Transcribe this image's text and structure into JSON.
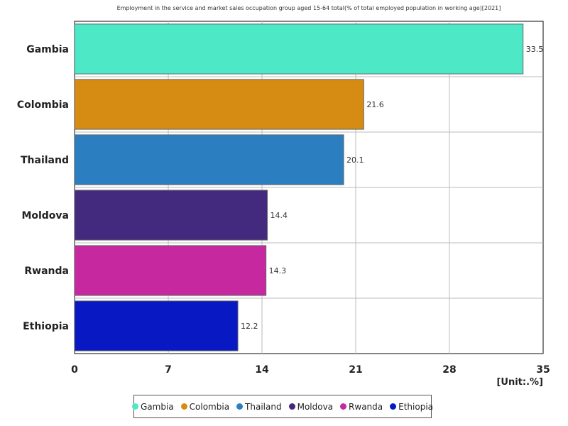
{
  "chart_data": {
    "type": "bar",
    "orientation": "horizontal",
    "title": "Employment in the service and market sales occupation group aged 15-64 total(% of total employed population in working age)[2021]",
    "categories": [
      "Gambia",
      "Colombia",
      "Thailand",
      "Moldova",
      "Rwanda",
      "Ethiopia"
    ],
    "values": [
      33.5,
      21.6,
      20.1,
      14.4,
      14.3,
      12.2
    ],
    "colors": [
      "#4de8c6",
      "#d68b13",
      "#2b7fc1",
      "#432a7f",
      "#c628a0",
      "#0818c2"
    ],
    "xlim": [
      0,
      35
    ],
    "xticks": [
      "0",
      "7",
      "14",
      "21",
      "28",
      "35"
    ],
    "unit_label": "[Unit:.%]",
    "grid": true,
    "legend_position": "bottom"
  }
}
